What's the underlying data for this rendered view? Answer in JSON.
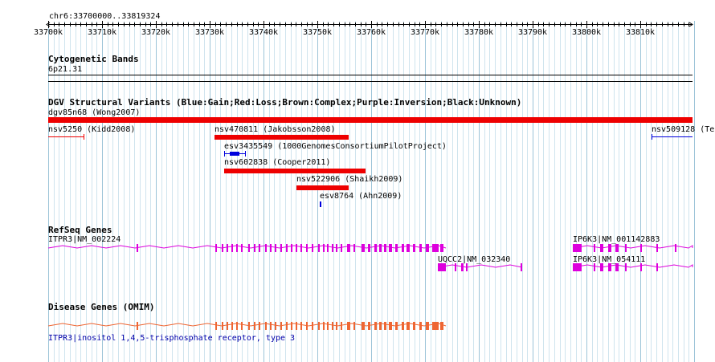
{
  "ruler": {
    "range_label": "chr6:33700000..33819324",
    "tick_labels": [
      "33700k",
      "33710k",
      "33720k",
      "33730k",
      "33740k",
      "33750k",
      "33760k",
      "33770k",
      "33780k",
      "33790k",
      "33800k",
      "33810k"
    ]
  },
  "cytoband": {
    "title": "Cytogenetic Bands",
    "band": "6p21.31"
  },
  "dgv": {
    "title": "DGV Structural Variants (Blue:Gain;Red:Loss;Brown:Complex;Purple:Inversion;Black:Unknown)",
    "colors": {
      "gain": "#0000dd",
      "loss": "#ee0000"
    },
    "variants": [
      {
        "label": "dgv85n68 (Wong2007)",
        "type": "loss"
      },
      {
        "label": "nsv5250 (Kidd2008)",
        "type": "loss"
      },
      {
        "label": "nsv470811 (Jakobsson2008)",
        "type": "loss"
      },
      {
        "label": "nsv509128 (Te",
        "type": "gain"
      },
      {
        "label": "esv3435549 (1000GenomesConsortiumPilotProject)",
        "type": "gain"
      },
      {
        "label": "nsv602838 (Cooper2011)",
        "type": "loss"
      },
      {
        "label": "nsv522906 (Shaikh2009)",
        "type": "loss"
      },
      {
        "label": "esv8764 (Ahn2009)",
        "type": "gain"
      }
    ]
  },
  "refseq": {
    "title": "RefSeq Genes",
    "color": "#dd00dd",
    "genes": [
      {
        "label": "ITPR3|NM_002224"
      },
      {
        "label": "UQCC2|NM_032340"
      },
      {
        "label": "IP6K3|NM_001142883"
      },
      {
        "label": "IP6K3|NM_054111"
      }
    ]
  },
  "omim": {
    "title": "Disease Genes (OMIM)",
    "color": "#ee6633",
    "gene_label": "ITPR3|inositol 1,4,5-trisphosphate receptor, type 3"
  }
}
